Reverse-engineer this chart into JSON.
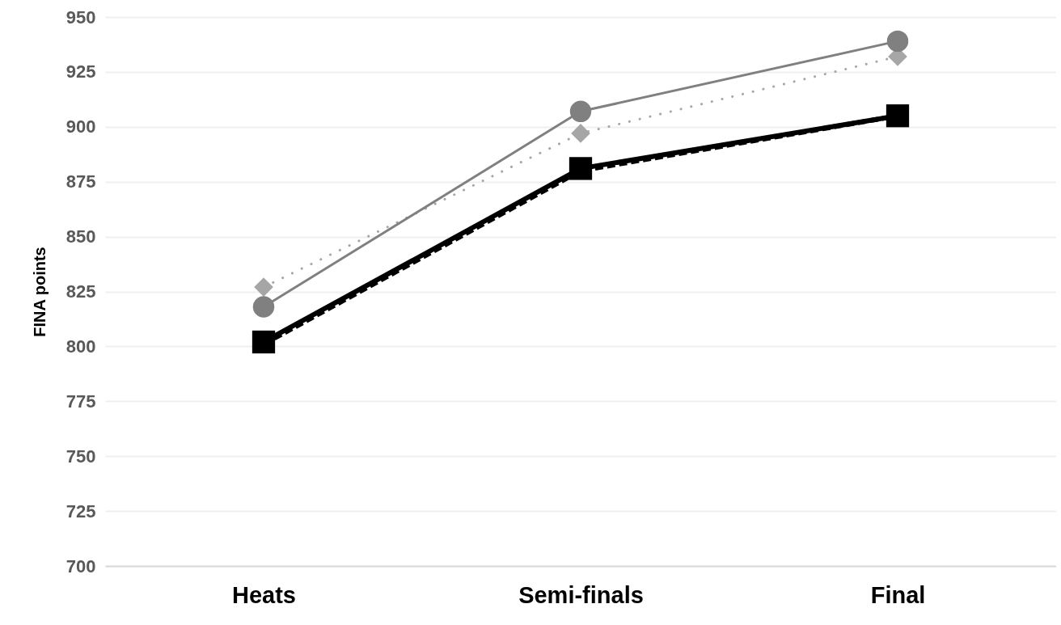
{
  "chart_data": {
    "type": "line",
    "ylabel": "FINA points",
    "categories": [
      "Heats",
      "Semi-finals",
      "Final"
    ],
    "series": [
      {
        "color": "#000000",
        "values": [
          802,
          881,
          905
        ],
        "marker": "square",
        "line_style": "solid"
      },
      {
        "color": "#000000",
        "values": [
          801,
          880,
          905
        ],
        "marker": "none",
        "line_style": "dashed"
      },
      {
        "color": "#a6a6a6",
        "values": [
          827,
          897,
          932
        ],
        "marker": "diamond",
        "line_style": "dotted"
      },
      {
        "color": "#808080",
        "values": [
          818,
          907,
          939
        ],
        "marker": "circle",
        "line_style": "solid"
      }
    ],
    "ylim": [
      700,
      950
    ],
    "yticks": [
      700,
      725,
      750,
      775,
      800,
      825,
      850,
      875,
      900,
      925,
      950
    ],
    "grid": "y"
  }
}
